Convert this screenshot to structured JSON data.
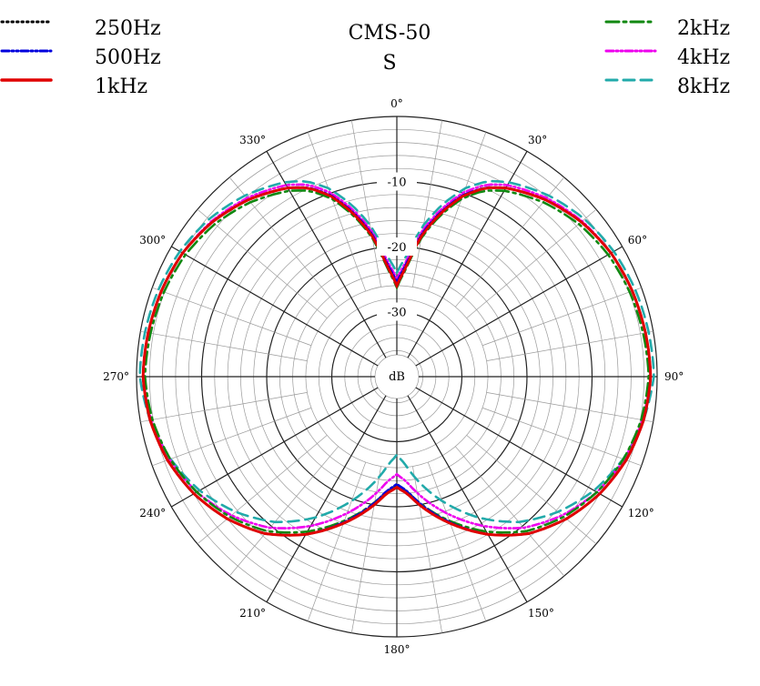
{
  "chart_data": {
    "type": "polar-line",
    "title": [
      "CMS-50",
      "S"
    ],
    "unit_label": "dB",
    "radial_ticks": [
      -10,
      -20,
      -30
    ],
    "radial_range": [
      -40,
      0
    ],
    "angle_ticks": [
      "0°",
      "30°",
      "60°",
      "90°",
      "120°",
      "150°",
      "180°",
      "210°",
      "240°",
      "270°",
      "300°",
      "330°"
    ],
    "grid": true,
    "legend_left": [
      "250Hz",
      "500Hz",
      "1kHz"
    ],
    "legend_right": [
      "2kHz",
      "4kHz",
      "8kHz"
    ],
    "series": [
      {
        "name": "250Hz",
        "color": "#000000",
        "dash": "dotted",
        "deviation": [
          0,
          0,
          0,
          0,
          0,
          0,
          0
        ]
      },
      {
        "name": "500Hz",
        "color": "#0000dd",
        "dash": "dash-dot-dot",
        "deviation": [
          0.5,
          0,
          0,
          0,
          0,
          0,
          -0.5
        ]
      },
      {
        "name": "1kHz",
        "color": "#e00000",
        "dash": "solid",
        "deviation": [
          0,
          0,
          0,
          0,
          0,
          0,
          0
        ]
      },
      {
        "name": "2kHz",
        "color": "#118811",
        "dash": "dash-dot",
        "deviation": [
          -0.3,
          -0.5,
          -0.5,
          -0.3,
          -0.5,
          -0.5,
          -0.3
        ]
      },
      {
        "name": "4kHz",
        "color": "#ee00ee",
        "dash": "dash-dot-dot",
        "deviation": [
          1,
          0.5,
          0,
          0,
          -0.5,
          -1.5,
          -2
        ]
      },
      {
        "name": "8kHz",
        "color": "#22aaaa",
        "dash": "dashed",
        "deviation": [
          2,
          1,
          0.5,
          0.5,
          -1,
          -3,
          -5
        ]
      }
    ],
    "base_curve": {
      "angles": [
        0,
        5,
        10,
        15,
        20,
        25,
        30,
        40,
        50,
        60,
        70,
        80,
        90,
        100,
        110,
        120,
        130,
        140,
        150,
        160,
        165,
        170,
        175,
        180
      ],
      "values": [
        -26,
        -23,
        -18,
        -14,
        -10.5,
        -8,
        -6.5,
        -4.5,
        -3,
        -2,
        -1.5,
        -1.2,
        -1,
        -1.5,
        -2.5,
        -4,
        -6,
        -8.5,
        -12,
        -16,
        -18,
        -20,
        -22,
        -23
      ]
    }
  }
}
